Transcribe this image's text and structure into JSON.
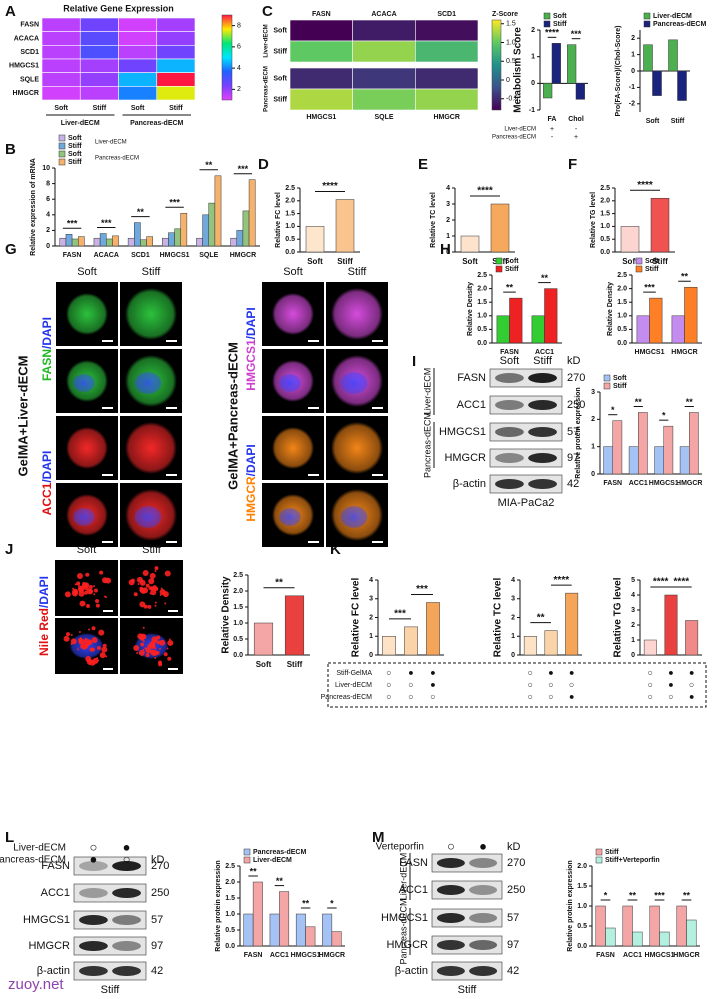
{
  "panel_labels": [
    "A",
    "B",
    "C",
    "D",
    "E",
    "F",
    "G",
    "H",
    "I",
    "J",
    "K",
    "L",
    "M"
  ],
  "chart_data": [
    {
      "type": "heatmap",
      "title": "Relative Gene Expression",
      "rows": [
        "FASN",
        "ACACA",
        "SCD1",
        "HMGCS1",
        "SQLE",
        "HMGCR"
      ],
      "columns": [
        "Soft",
        "Stiff",
        "Soft",
        "Stiff"
      ],
      "groups": [
        "Liver-dECM",
        "Pancreas-dECM"
      ],
      "values": [
        [
          1.5,
          2.5,
          1.2,
          1.8
        ],
        [
          1.5,
          2.8,
          1.2,
          2.0
        ],
        [
          1.5,
          3.0,
          1.5,
          2.5
        ],
        [
          1.5,
          1.8,
          2.5,
          4.5
        ],
        [
          1.5,
          2.0,
          4.5,
          9.0
        ],
        [
          1.2,
          1.5,
          4.0,
          7.5
        ]
      ],
      "zlim": [
        1,
        9
      ],
      "zticks": [
        2,
        4,
        6,
        8
      ],
      "colorscale": [
        "#e040fb",
        "#7b3fff",
        "#2060ff",
        "#00e5ff",
        "#00e676",
        "#ffea00",
        "#ff1744"
      ]
    },
    {
      "type": "bar",
      "ylabel": "Relative expression  of  mRNA",
      "categories": [
        "FASN",
        "ACACA",
        "SCD1",
        "HMGCS1",
        "SQLE",
        "HMGCR"
      ],
      "series": [
        {
          "name": "Soft",
          "color": "#c9b3e6",
          "values": [
            1,
            1,
            1,
            1,
            1,
            1
          ]
        },
        {
          "name": "Stiff",
          "color": "#6fa8dc",
          "values": [
            1.5,
            1.6,
            3.0,
            1.7,
            4.0,
            2.0
          ]
        },
        {
          "name": "Soft",
          "color": "#93c47d",
          "values": [
            0.9,
            0.9,
            0.8,
            2.2,
            5.5,
            4.5
          ]
        },
        {
          "name": "Stiff",
          "color": "#f6b26b",
          "values": [
            1.2,
            1.3,
            1.2,
            4.2,
            9.0,
            8.5
          ]
        }
      ],
      "legend_groups": [
        "Liver-dECM",
        "Pancreas-dECM"
      ],
      "legend": "top-left",
      "ylim": [
        0,
        10
      ],
      "yticks": [
        0,
        2,
        4,
        6,
        8,
        10
      ],
      "annotations": [
        "***",
        "***",
        "**",
        "***",
        "**",
        "***"
      ]
    },
    {
      "type": "heatmap",
      "rows": [
        "Soft",
        "Stiff",
        "Soft",
        "Stiff"
      ],
      "groups": [
        "Liver-dECM",
        "Pancreas-dECM"
      ],
      "columns": [
        "FASN",
        "ACACA",
        "SCD1"
      ],
      "columns_bottom": [
        "HMGCS1",
        "SQLE",
        "HMGCR"
      ],
      "values": [
        [
          -0.8,
          -0.6,
          -0.7
        ],
        [
          1.0,
          1.2,
          0.8
        ],
        [
          -0.5,
          -0.4,
          -0.5
        ],
        [
          1.3,
          1.1,
          1.2
        ]
      ],
      "zlim": [
        -0.8,
        1.6
      ],
      "ztitle": "Z-Score",
      "zticks": [
        1.5,
        {
          "value": 1,
          "label": "1.0"
        },
        0.5,
        0,
        -0.5
      ],
      "colorscale": [
        "#440154",
        "#3b528b",
        "#21918c",
        "#5ec962",
        "#fde725"
      ]
    },
    {
      "type": "bar",
      "ylabel": "Metabolism Score",
      "categories": [
        "FA",
        "Chol"
      ],
      "series": [
        {
          "name": "Soft",
          "color": "#4caf50",
          "values": [
            -0.55,
            1.45
          ]
        },
        {
          "name": "Stiff",
          "color": "#1a237e",
          "values": [
            1.5,
            -0.6
          ]
        }
      ],
      "legend": "top-left",
      "ylim": [
        -1,
        2
      ],
      "yticks": [
        -1,
        0,
        1,
        2
      ],
      "annotations": [
        "****",
        "***"
      ],
      "condition_rows": [
        {
          "name": "Liver-dECM",
          "marks": [
            "+",
            "-"
          ]
        },
        {
          "name": "Pancreas-dECM",
          "marks": [
            "-",
            "+"
          ]
        }
      ]
    },
    {
      "type": "bar",
      "ylabel": "Pro(FA-Score)/(Chol-Score)",
      "categories": [
        "Soft",
        "Stiff"
      ],
      "series": [
        {
          "name": "Liver-dECM",
          "color": "#4caf50",
          "values": [
            1.6,
            1.9
          ]
        },
        {
          "name": "Pancreas-dECM",
          "color": "#1a237e",
          "values": [
            -1.5,
            -1.8
          ]
        }
      ],
      "legend": "top-left",
      "ylim": [
        -2.5,
        2.5
      ],
      "yticks": [
        -2,
        -1,
        0,
        1,
        2
      ]
    },
    {
      "type": "bar",
      "ylabel": "Relative FC level",
      "categories": [
        "Soft",
        "Stiff"
      ],
      "values": [
        1.0,
        2.05
      ],
      "colors": [
        "#fde6cc",
        "#f9c48e"
      ],
      "ylim": [
        0,
        2.5
      ],
      "yticks": [
        {
          "value": 0,
          "label": "0.0"
        },
        0.5,
        {
          "value": 1,
          "label": "1.0"
        },
        1.5,
        {
          "value": 2,
          "label": "2.0"
        },
        2.5
      ],
      "annotations": [
        "****"
      ]
    },
    {
      "type": "bar",
      "ylabel": "Relative TC level",
      "categories": [
        "Soft",
        "Stiff"
      ],
      "values": [
        1.0,
        3.0
      ],
      "colors": [
        "#fde3cc",
        "#f6a95c"
      ],
      "ylim": [
        0,
        4
      ],
      "yticks": [
        0,
        1,
        2,
        3,
        4
      ],
      "annotations": [
        "****"
      ]
    },
    {
      "type": "bar",
      "ylabel": "Relative TG level",
      "categories": [
        "Soft",
        "Stiff"
      ],
      "values": [
        1.0,
        2.1
      ],
      "colors": [
        "#fdd5d0",
        "#f0524f"
      ],
      "ylim": [
        0,
        2.5
      ],
      "yticks": [
        {
          "value": 0,
          "label": "0.0"
        },
        0.5,
        {
          "value": 1,
          "label": "1.0"
        },
        1.5,
        {
          "value": 2,
          "label": "2.0"
        },
        2.5
      ],
      "annotations": [
        "****"
      ]
    },
    {
      "type": "bar",
      "ylabel": "Relative Density",
      "categories": [
        "FASN",
        "ACC1"
      ],
      "series": [
        {
          "name": "Soft",
          "color": "#33cc33",
          "values": [
            1.0,
            1.0
          ]
        },
        {
          "name": "Stiff",
          "color": "#ee2222",
          "values": [
            1.65,
            2.0
          ]
        }
      ],
      "legend": "top-left",
      "ylim": [
        0,
        2.5
      ],
      "yticks": [
        {
          "value": 0,
          "label": "0.0"
        },
        0.5,
        {
          "value": 1,
          "label": "1.0"
        },
        1.5,
        {
          "value": 2,
          "label": "2.0"
        },
        2.5
      ],
      "annotations": [
        "**",
        "**"
      ]
    },
    {
      "type": "bar",
      "ylabel": "Relative Density",
      "categories": [
        "HMGCS1",
        "HMGCR"
      ],
      "series": [
        {
          "name": "Soft",
          "color": "#c58cf0",
          "values": [
            1.0,
            1.0
          ]
        },
        {
          "name": "Stiff",
          "color": "#ff7f27",
          "values": [
            1.65,
            2.05
          ]
        }
      ],
      "legend": "top-left",
      "ylim": [
        0,
        2.5
      ],
      "yticks": [
        {
          "value": 0,
          "label": "0.0"
        },
        0.5,
        {
          "value": 1,
          "label": "1.0"
        },
        1.5,
        {
          "value": 2,
          "label": "2.0"
        },
        2.5
      ],
      "annotations": [
        "***",
        "**"
      ]
    },
    {
      "type": "bar",
      "ylabel": "Relative protein expression",
      "categories": [
        "FASN",
        "ACC1",
        "HMGCS1",
        "HMGCR"
      ],
      "series": [
        {
          "name": "Soft",
          "color": "#a4c2f4",
          "values": [
            1,
            1,
            1,
            1
          ]
        },
        {
          "name": "Stiff",
          "color": "#f4a6a6",
          "values": [
            1.95,
            2.25,
            1.75,
            2.25
          ]
        }
      ],
      "legend": "top-left",
      "ylim": [
        0,
        3
      ],
      "yticks": [
        0,
        1,
        2,
        3
      ],
      "annotations": [
        "*",
        "**",
        "*",
        "**"
      ]
    },
    {
      "type": "bar",
      "ylabel": "Relative Density",
      "categories": [
        "Soft",
        "Stiff"
      ],
      "values": [
        1.0,
        1.85
      ],
      "colors": [
        "#f4a6a6",
        "#e8413f"
      ],
      "ylim": [
        0,
        2.5
      ],
      "yticks": [
        {
          "value": 0,
          "label": "0.0"
        },
        0.5,
        {
          "value": 1,
          "label": "1.0"
        },
        1.5,
        {
          "value": 2,
          "label": "2.0"
        },
        2.5
      ],
      "annotations": [
        "**"
      ]
    },
    {
      "type": "bar",
      "ylabel": "Relative FC level",
      "values": [
        1.0,
        1.5,
        2.8
      ],
      "colors": [
        "#fde2c6",
        "#fbd3a8",
        "#f5a55a"
      ],
      "ylim": [
        0,
        4
      ],
      "yticks": [
        0,
        1,
        2,
        3,
        4
      ],
      "annotations": [
        "***",
        "***"
      ]
    },
    {
      "type": "bar",
      "ylabel": "Relative TC level",
      "values": [
        1.0,
        1.3,
        3.3
      ],
      "colors": [
        "#fde2c6",
        "#fbd3a8",
        "#f5a55a"
      ],
      "ylim": [
        0,
        4
      ],
      "yticks": [
        0,
        1,
        2,
        3,
        4
      ],
      "annotations": [
        "**",
        "****"
      ]
    },
    {
      "type": "bar",
      "ylabel": "Relative TG level",
      "values": [
        1.0,
        4.0,
        2.3
      ],
      "colors": [
        "#fcd5d0",
        "#e8413f",
        "#f08a8a"
      ],
      "ylim": [
        0,
        5
      ],
      "yticks": [
        0,
        1,
        2,
        3,
        4,
        5
      ],
      "annotations": [
        "****",
        "****"
      ]
    },
    {
      "type": "bar",
      "ylabel": "Relative protein expression",
      "categories": [
        "FASN",
        "ACC1",
        "HMGCS1",
        "HMGCR"
      ],
      "series": [
        {
          "name": "Pancreas-dECM",
          "color": "#a4c2f4",
          "values": [
            1,
            1,
            1,
            1
          ]
        },
        {
          "name": "Liver-dECM",
          "color": "#f4a6a6",
          "values": [
            2.0,
            1.7,
            0.6,
            0.45
          ]
        }
      ],
      "legend": "top-left",
      "ylim": [
        0,
        2.5
      ],
      "yticks": [
        {
          "value": 0,
          "label": "0.0"
        },
        0.5,
        {
          "value": 1,
          "label": "1.0"
        },
        1.5,
        {
          "value": 2,
          "label": "2.0"
        },
        2.5
      ],
      "annotations": [
        "**",
        "**",
        "**",
        "*"
      ]
    },
    {
      "type": "bar",
      "ylabel": "Relative protein expression",
      "categories": [
        "FASN",
        "ACC1",
        "HMGCS1",
        "HMGCR"
      ],
      "series": [
        {
          "name": "Stiff",
          "color": "#f4a6a6",
          "values": [
            1,
            1,
            1,
            1
          ]
        },
        {
          "name": "Stiff+Verteporfin",
          "color": "#b3f0e0",
          "values": [
            0.45,
            0.35,
            0.35,
            0.65
          ]
        }
      ],
      "legend": "top-left",
      "ylim": [
        0,
        2
      ],
      "yticks": [
        {
          "value": 0,
          "label": "0.0"
        },
        0.5,
        {
          "value": 1,
          "label": "1.0"
        },
        1.5,
        {
          "value": 2,
          "label": "2.0"
        }
      ],
      "annotations": [
        "*",
        "**",
        "***",
        "**"
      ]
    }
  ],
  "G": {
    "columns": [
      "Soft",
      "Stiff",
      "Soft",
      "Stiff"
    ],
    "left_title": "GelMA+Liver-dECM",
    "right_title": "GelMA+Pancreas-dECM",
    "stains": [
      [
        "FASN",
        "/DAPI"
      ],
      [
        "ACC1",
        "/DAPI"
      ],
      [
        "HMGCS1",
        "/DAPI"
      ],
      [
        "HMGCR",
        "/DAPI"
      ]
    ]
  },
  "I_blot": {
    "columns": [
      "Soft",
      "Stiff"
    ],
    "unit": "kD",
    "groups": [
      "Liver-dECM",
      "Pancreas-dECM"
    ],
    "proteins": [
      "FASN",
      "ACC1",
      "HMGCS1",
      "HMGCR",
      "β-actin"
    ],
    "weights": [
      270,
      250,
      57,
      97,
      42
    ],
    "footer": "MIA-PaCa2"
  },
  "J_images": {
    "columns": [
      "Soft",
      "Stiff"
    ],
    "stain": [
      "Nile Red",
      "/DAPI"
    ]
  },
  "K_conditions": {
    "rows": [
      "Stiff-GelMA",
      "Liver-dECM",
      "Pancreas-dECM"
    ],
    "cells": [
      [
        "○",
        "●",
        "●",
        "○",
        "●",
        "●",
        "○",
        "●",
        "●"
      ],
      [
        "○",
        "○",
        "●",
        "○",
        "○",
        "○",
        "○",
        "●",
        "○"
      ],
      [
        "○",
        "○",
        "○",
        "○",
        "○",
        "●",
        "○",
        "○",
        "●"
      ]
    ]
  },
  "L_blot": {
    "conditions": [
      {
        "name": "Liver-dECM",
        "marks": [
          "○",
          "●"
        ]
      },
      {
        "name": "Pancreas-dECM",
        "marks": [
          "●",
          "○"
        ]
      }
    ],
    "unit": "kD",
    "proteins": [
      "FASN",
      "ACC1",
      "HMGCS1",
      "HMGCR",
      "β-actin"
    ],
    "weights": [
      270,
      250,
      57,
      97,
      42
    ],
    "footer": "Stiff"
  },
  "M_blot": {
    "conditions": [
      {
        "name": "Verteporfin",
        "marks": [
          "○",
          "●"
        ]
      }
    ],
    "unit": "kD",
    "groups": [
      "Liver-dECM",
      "Pancreas-dECM"
    ],
    "proteins": [
      "FASN",
      "ACC1",
      "HMGCS1",
      "HMGCR",
      "β-actin"
    ],
    "weights": [
      270,
      250,
      57,
      97,
      42
    ],
    "footer": "Stiff"
  },
  "watermark": "zuoy.net"
}
